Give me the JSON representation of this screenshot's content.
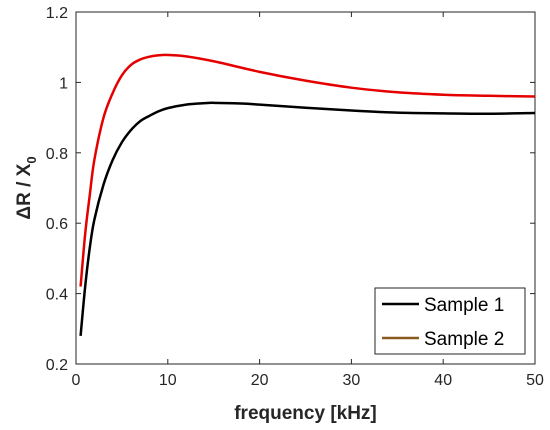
{
  "chart_data": {
    "type": "line",
    "xlabel": "frequency [kHz]",
    "ylabel_main": "ΔR / X",
    "ylabel_sub": "0",
    "xlim": [
      0,
      50
    ],
    "ylim": [
      0.2,
      1.2
    ],
    "xticks": [
      0,
      10,
      20,
      30,
      40,
      50
    ],
    "yticks": [
      0.2,
      0.4,
      0.6,
      0.8,
      1,
      1.2
    ],
    "grid": false,
    "legend_position": "bottom-right",
    "series": [
      {
        "name": "Sample 1",
        "color": "#000000",
        "legend_color": "#000000",
        "points": [
          [
            0.5,
            0.28
          ],
          [
            1,
            0.42
          ],
          [
            1.5,
            0.53
          ],
          [
            2,
            0.61
          ],
          [
            3,
            0.71
          ],
          [
            4,
            0.78
          ],
          [
            5,
            0.83
          ],
          [
            6,
            0.865
          ],
          [
            7,
            0.89
          ],
          [
            8,
            0.905
          ],
          [
            9,
            0.918
          ],
          [
            10,
            0.927
          ],
          [
            12,
            0.937
          ],
          [
            14,
            0.941
          ],
          [
            15,
            0.942
          ],
          [
            18,
            0.94
          ],
          [
            20,
            0.937
          ],
          [
            25,
            0.928
          ],
          [
            30,
            0.92
          ],
          [
            35,
            0.914
          ],
          [
            40,
            0.912
          ],
          [
            45,
            0.911
          ],
          [
            50,
            0.913
          ]
        ]
      },
      {
        "name": "Sample 2",
        "color": "#e50000",
        "legend_color": "#8b5a1e",
        "points": [
          [
            0.5,
            0.42
          ],
          [
            1,
            0.57
          ],
          [
            1.5,
            0.68
          ],
          [
            2,
            0.78
          ],
          [
            3,
            0.9
          ],
          [
            4,
            0.97
          ],
          [
            5,
            1.02
          ],
          [
            6,
            1.05
          ],
          [
            7,
            1.065
          ],
          [
            8,
            1.073
          ],
          [
            9,
            1.077
          ],
          [
            10,
            1.078
          ],
          [
            12,
            1.074
          ],
          [
            15,
            1.06
          ],
          [
            20,
            1.03
          ],
          [
            25,
            1.005
          ],
          [
            30,
            0.985
          ],
          [
            35,
            0.972
          ],
          [
            40,
            0.965
          ],
          [
            45,
            0.962
          ],
          [
            50,
            0.96
          ]
        ]
      }
    ]
  }
}
